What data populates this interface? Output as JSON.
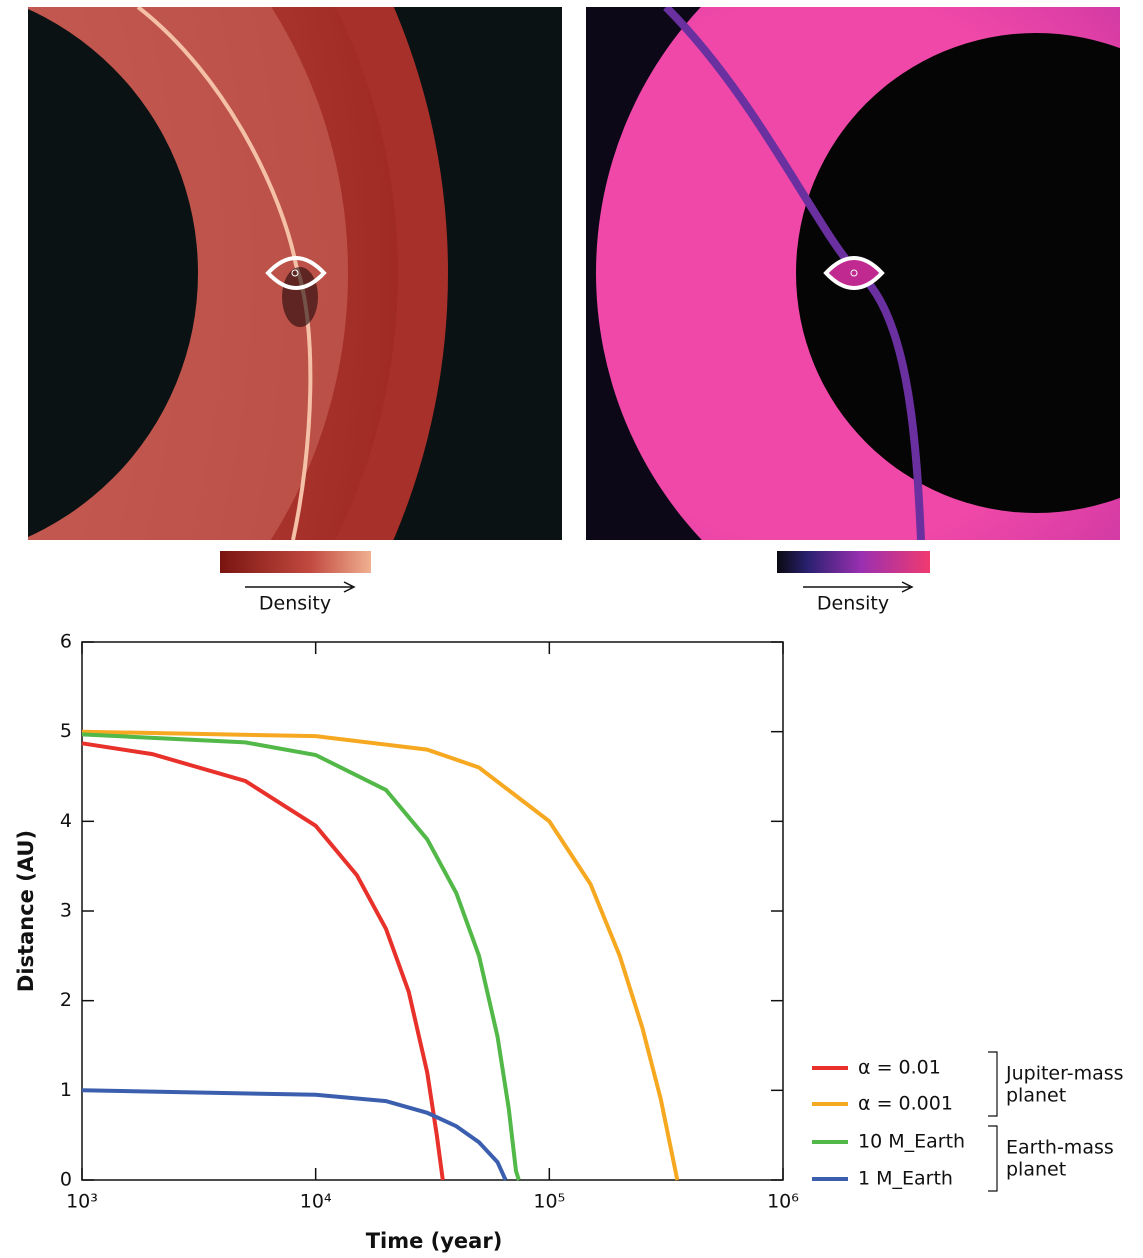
{
  "panels": [
    {
      "colorbar_label": "Density"
    },
    {
      "colorbar_label": "Density"
    }
  ],
  "chart_data": {
    "type": "line",
    "x_label": "Time (year)",
    "y_label": "Distance (AU)",
    "xscale": "log",
    "xlim": [
      1000,
      1000000
    ],
    "ylim": [
      0,
      6
    ],
    "xticks": [
      {
        "value": 1000,
        "label": "10³"
      },
      {
        "value": 10000,
        "label": "10⁴"
      },
      {
        "value": 100000,
        "label": "10⁵"
      },
      {
        "value": 1000000,
        "label": "10⁶"
      }
    ],
    "yticks": [
      0,
      1,
      2,
      3,
      4,
      5,
      6
    ],
    "series": [
      {
        "name": "α = 0.01",
        "color": "#e8312a",
        "x": [
          1000,
          2000,
          5000,
          10000,
          15000,
          20000,
          25000,
          30000,
          33000,
          35000
        ],
        "values": [
          4.87,
          4.75,
          4.45,
          3.95,
          3.4,
          2.8,
          2.1,
          1.2,
          0.5,
          0
        ]
      },
      {
        "name": "α = 0.001",
        "color": "#f6a821",
        "x": [
          1000,
          10000,
          30000,
          50000,
          100000,
          150000,
          200000,
          250000,
          300000,
          353000
        ],
        "values": [
          5.0,
          4.95,
          4.8,
          4.6,
          4.0,
          3.3,
          2.5,
          1.7,
          0.9,
          0
        ]
      },
      {
        "name": "10 M_Earth",
        "color": "#52b848",
        "x": [
          1000,
          5000,
          10000,
          20000,
          30000,
          40000,
          50000,
          60000,
          67000,
          72000,
          74000
        ],
        "values": [
          4.97,
          4.88,
          4.74,
          4.35,
          3.8,
          3.2,
          2.5,
          1.6,
          0.8,
          0.1,
          0
        ]
      },
      {
        "name": "1 M_Earth",
        "color": "#3b5fae",
        "x": [
          1000,
          10000,
          20000,
          30000,
          40000,
          50000,
          60000,
          65000
        ],
        "values": [
          1.0,
          0.95,
          0.88,
          0.75,
          0.6,
          0.42,
          0.2,
          0
        ]
      }
    ],
    "legend_groups": [
      [
        "Jupiter-mass",
        "planet"
      ],
      [
        "Earth-mass",
        "planet"
      ]
    ]
  }
}
